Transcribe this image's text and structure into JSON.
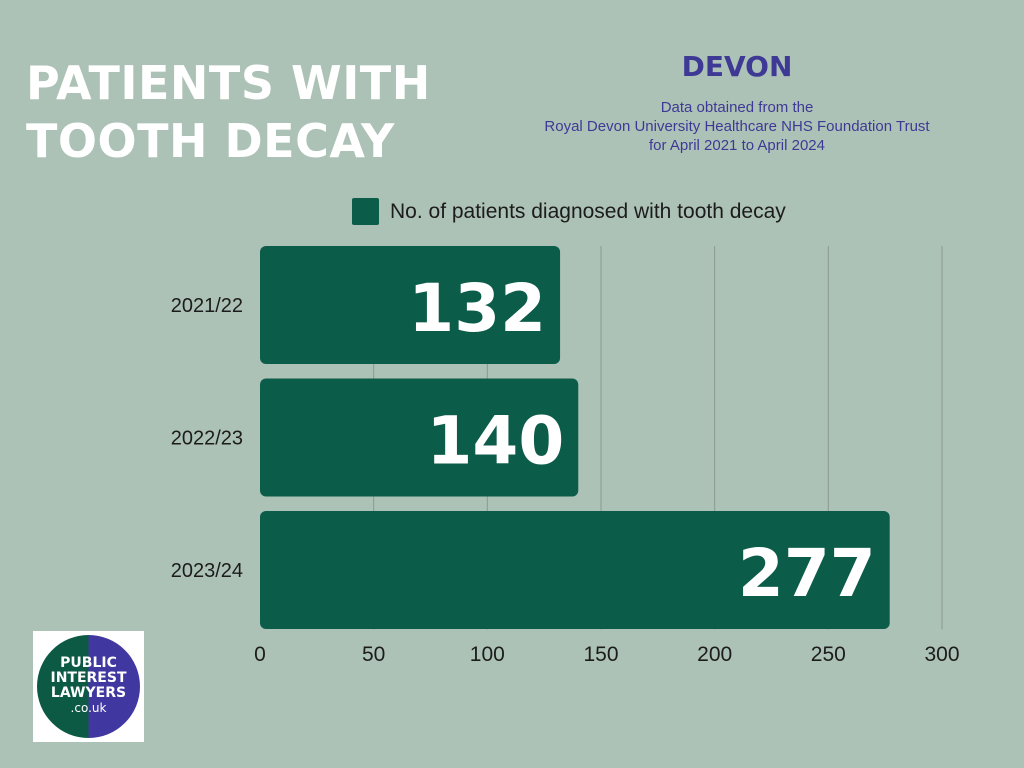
{
  "title": {
    "line1": "PATIENTS WITH",
    "line2": "TOOTH DECAY"
  },
  "region": "DEVON",
  "source": {
    "line1": "Data obtained from the",
    "line2": "Royal Devon University Healthcare NHS Foundation Trust",
    "line3": "for April 2021 to April 2024"
  },
  "logo": {
    "line1": "PUBLIC",
    "line2": "INTEREST",
    "line3": "LAWYERS",
    "line4": ".co.uk"
  },
  "colors": {
    "background": "#adc2b6",
    "bar": "#0c5c4a",
    "accent": "#3f3996",
    "grid": "#8a9a90"
  },
  "chart_data": {
    "type": "bar",
    "orientation": "horizontal",
    "categories": [
      "2021/22",
      "2022/23",
      "2023/24"
    ],
    "series": [
      {
        "name": "No. of patients diagnosed with tooth decay",
        "values": [
          132,
          140,
          277
        ]
      }
    ],
    "xlim": [
      0,
      300
    ],
    "x_ticks": [
      0,
      50,
      100,
      150,
      200,
      250,
      300
    ],
    "grid": "vertical",
    "legend": "top",
    "data_labels": true
  }
}
